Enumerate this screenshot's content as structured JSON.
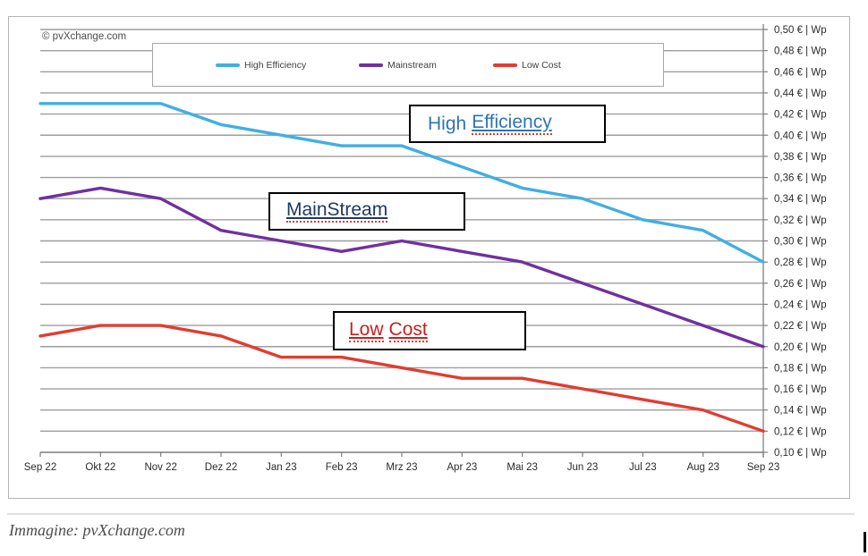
{
  "panel": {
    "copyright": "© pvXchange.com"
  },
  "annotations": {
    "high_efficiency": {
      "plain": "High",
      "underlined": "Efficiency",
      "color": "#2e75b6"
    },
    "mainstream": {
      "underlined": "MainStream",
      "color": "#1f3864"
    },
    "low_cost": {
      "word1": "Low",
      "word2": "Cost",
      "color": "#c81f1f"
    }
  },
  "chart_data": {
    "type": "line",
    "categories": [
      "Sep 22",
      "Okt 22",
      "Nov 22",
      "Dez 22",
      "Jan 23",
      "Feb 23",
      "Mrz 23",
      "Apr 23",
      "Mai 23",
      "Jun 23",
      "Jul 23",
      "Aug 23",
      "Sep 23"
    ],
    "series": [
      {
        "name": "High Efficiency",
        "color": "#41aee4",
        "values": [
          0.43,
          0.43,
          0.43,
          0.41,
          0.4,
          0.39,
          0.39,
          0.37,
          0.35,
          0.34,
          0.32,
          0.31,
          0.28
        ]
      },
      {
        "name": "Mainstream",
        "color": "#7030a0",
        "values": [
          0.34,
          0.35,
          0.34,
          0.31,
          0.3,
          0.29,
          0.3,
          0.29,
          0.28,
          0.26,
          0.24,
          0.22,
          0.2
        ]
      },
      {
        "name": "Low Cost",
        "color": "#e23c30",
        "values": [
          0.21,
          0.22,
          0.22,
          0.21,
          0.19,
          0.19,
          0.18,
          0.17,
          0.17,
          0.16,
          0.15,
          0.14,
          0.12
        ]
      }
    ],
    "unit": "€ | Wp",
    "ylim": [
      0.1,
      0.5
    ],
    "ytick_step": 0.02,
    "ytick_labels": [
      "0,50 € | Wp",
      "0,48 € | Wp",
      "0,46 € | Wp",
      "0,44 € | Wp",
      "0,42 € | Wp",
      "0,40 € | Wp",
      "0,38 € | Wp",
      "0,36 € | Wp",
      "0,34 € | Wp",
      "0,32 € | Wp",
      "0,30 € | Wp",
      "0,28 € | Wp",
      "0,26 € | Wp",
      "0,24 € | Wp",
      "0,22 € | Wp",
      "0,20 € | Wp",
      "0,18 € | Wp",
      "0,16 € | Wp",
      "0,14 € | Wp",
      "0,12 € | Wp",
      "0,10 € | Wp"
    ],
    "grid": true,
    "grid_color": "#9e9e9e",
    "axis_color": "#7f7f7f",
    "legend_position": "top-center"
  },
  "footer": {
    "caption": "Immagine: pvXchange.com"
  }
}
